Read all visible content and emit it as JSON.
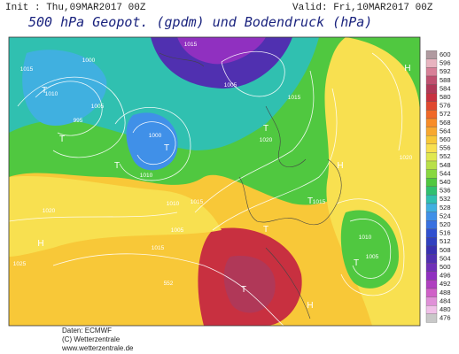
{
  "header": {
    "init": "Init : Thu,09MAR2017 00Z",
    "valid": "Valid: Fri,10MAR2017 00Z",
    "title": "500 hPa Geopot. (gpdm) und Bodendruck (hPa)"
  },
  "colorbar": {
    "labels": [
      600,
      596,
      592,
      588,
      584,
      580,
      576,
      572,
      568,
      564,
      560,
      556,
      552,
      548,
      544,
      540,
      536,
      532,
      528,
      524,
      520,
      516,
      512,
      508,
      504,
      500,
      496,
      492,
      488,
      484,
      480,
      476
    ],
    "colors": [
      "#b09aa0",
      "#e8b4c0",
      "#d88098",
      "#c05070",
      "#b03858",
      "#c83040",
      "#e04830",
      "#f06828",
      "#f88c28",
      "#f8a830",
      "#f8c838",
      "#f8e050",
      "#e0e850",
      "#b8e048",
      "#88d840",
      "#50c840",
      "#30c070",
      "#30c0b0",
      "#40b0e0",
      "#4090e8",
      "#3870e0",
      "#3050d0",
      "#3040c0",
      "#3830b0",
      "#5030b0",
      "#7030b8",
      "#9030c0",
      "#b040c0",
      "#d060c8",
      "#e090d8",
      "#f0c0e8",
      "#c8c8c8"
    ]
  },
  "map_labels": [
    "1015",
    "1005",
    "1000",
    "995",
    "1010",
    "1015",
    "1005",
    "1000",
    "1010",
    "1015",
    "1020",
    "1025",
    "1015",
    "1010",
    "1005",
    "552",
    "1020",
    "1015",
    "1010",
    "1005",
    "1015",
    "1020"
  ],
  "symbols": [
    "T",
    "T",
    "T",
    "T",
    "H",
    "H",
    "T",
    "T",
    "T",
    "H",
    "T",
    "T",
    "H"
  ],
  "footer": [
    "Daten: ECMWF",
    "(C) Wetterzentrale",
    "www.wetterzentrale.de"
  ]
}
